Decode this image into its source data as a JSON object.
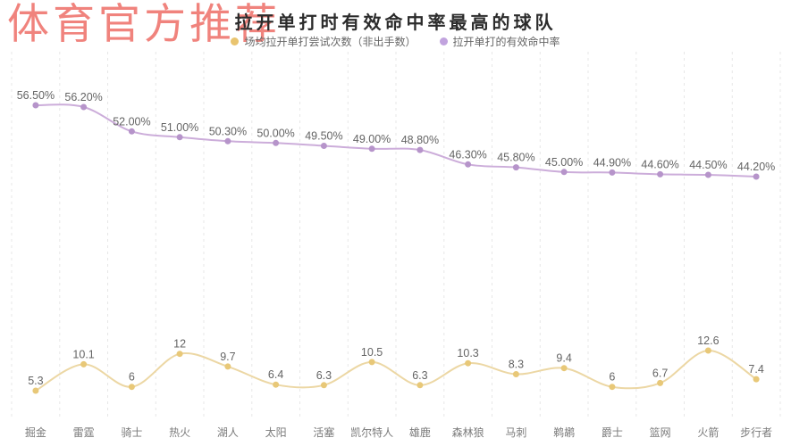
{
  "watermark": {
    "text": "体育官方推荐",
    "color": "#f0837d"
  },
  "chart": {
    "title": "拉开单打时有效命中率最高的球队",
    "legend": [
      {
        "label": "场均拉开单打尝试次数（非出手数）",
        "color": "#e9c46f"
      },
      {
        "label": "拉开单打的有效命中率",
        "color": "#c1a3de"
      }
    ]
  },
  "chart_data": {
    "type": "line",
    "title": "拉开单打时有效命中率最高的球队",
    "xlabel": "",
    "ylabel": "",
    "grid": "vertical-dashed",
    "legend_position": "top",
    "categories": [
      "掘金",
      "雷霆",
      "骑士",
      "热火",
      "湖人",
      "太阳",
      "活塞",
      "凯尔特人",
      "雄鹿",
      "森林狼",
      "马刺",
      "鹈鹕",
      "爵士",
      "篮网",
      "火箭",
      "步行者"
    ],
    "series": [
      {
        "name": "场均拉开单打尝试次数（非出手数）",
        "axis": "attempts",
        "values": [
          5.3,
          10.1,
          6,
          12,
          9.7,
          6.4,
          6.3,
          10.5,
          6.3,
          10.3,
          8.3,
          9.4,
          6,
          6.7,
          12.6,
          7.4
        ],
        "labels": [
          "5.3",
          "10.1",
          "6",
          "12",
          "9.7",
          "6.4",
          "6.3",
          "10.5",
          "6.3",
          "10.3",
          "8.3",
          "9.4",
          "6",
          "6.7",
          "12.6",
          "7.4"
        ],
        "value_range": [
          5.3,
          12.6
        ],
        "line_color": "#ecd7a4",
        "marker_color": "#e8c878"
      },
      {
        "name": "拉开单打的有效命中率",
        "axis": "efg",
        "values": [
          56.5,
          56.2,
          52.0,
          51.0,
          50.3,
          50.0,
          49.5,
          49.0,
          48.8,
          46.3,
          45.8,
          45.0,
          44.9,
          44.6,
          44.5,
          44.2
        ],
        "labels": [
          "56.50%",
          "56.20%",
          "52.00%",
          "51.00%",
          "50.30%",
          "50.00%",
          "49.50%",
          "49.00%",
          "48.80%",
          "46.30%",
          "45.80%",
          "45.00%",
          "44.90%",
          "44.60%",
          "44.50%",
          "44.20%"
        ],
        "value_range": [
          44.2,
          56.5
        ],
        "line_color": "#ccadda",
        "marker_color": "#b694ca"
      }
    ],
    "label_color": "#646464",
    "axis_label_color": "#7a7a7a",
    "grid_color": "#e7e7e7"
  }
}
